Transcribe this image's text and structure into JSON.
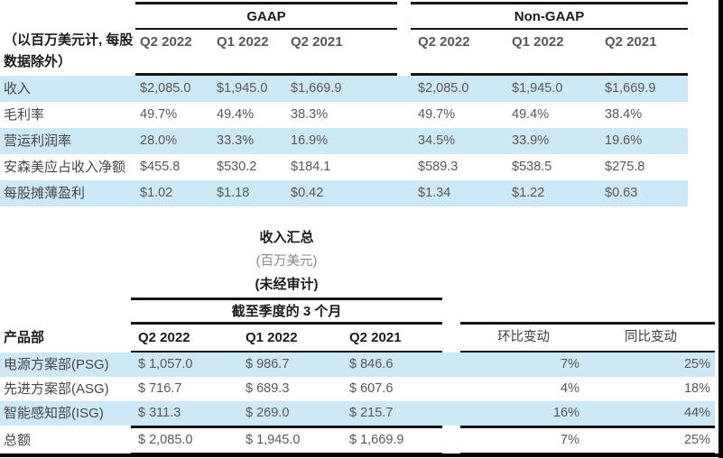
{
  "colors": {
    "highlight_blue": "#cde8f7",
    "rule_black": "#141414",
    "value_gray": "#585858"
  },
  "top_table": {
    "note_line1": "（以百万美元计, 每股",
    "note_line2": "数据除外）",
    "group_gaap": "GAAP",
    "group_non_gaap": "Non-GAAP",
    "columns": [
      "Q2 2022",
      "Q1 2022",
      "Q2 2021"
    ],
    "rows": [
      {
        "label": "收入",
        "vals": [
          "$2,085.0",
          "$1,945.0",
          "$1,669.9",
          "$2,085.0",
          "$1,945.0",
          "$1,669.9"
        ]
      },
      {
        "label": "毛利率",
        "vals": [
          "49.7%",
          "49.4%",
          "38.3%",
          "49.7%",
          "49.4%",
          "38.4%"
        ]
      },
      {
        "label": "营运利润率",
        "vals": [
          "28.0%",
          "33.3%",
          "16.9%",
          "34.5%",
          "33.9%",
          "19.6%"
        ]
      },
      {
        "label": "安森美应占收入净额",
        "vals": [
          "$455.8",
          "$530.2",
          "$184.1",
          "$589.3",
          "$538.5",
          "$275.8"
        ]
      },
      {
        "label": "每股摊薄盈利",
        "vals": [
          "$1.02",
          "$1.18",
          "$0.42",
          "$1.34",
          "$1.22",
          "$0.63"
        ]
      }
    ]
  },
  "summary": {
    "title": "收入汇总",
    "unit_note": "(百万美元)",
    "audit_note": "(未经审计)",
    "period_header": "截至季度的 3 个月"
  },
  "bottom_table": {
    "label_header": "产品部",
    "columns": [
      "Q2 2022",
      "Q1 2022",
      "Q2 2021"
    ],
    "qoq_header": "环比变动",
    "yoy_header": "同比变动",
    "rows": [
      {
        "label": "电源方案部(PSG)",
        "vals": [
          "$ 1,057.0",
          "$ 986.7",
          "$ 846.6"
        ],
        "qoq": "7%",
        "yoy": "25%"
      },
      {
        "label": "先进方案部(ASG)",
        "vals": [
          "$ 716.7",
          "$ 689.3",
          "$ 607.6"
        ],
        "qoq": "4%",
        "yoy": "18%"
      },
      {
        "label": "智能感知部(ISG)",
        "vals": [
          "$ 311.3",
          "$ 269.0",
          "$ 215.7"
        ],
        "qoq": "16%",
        "yoy": "44%"
      },
      {
        "label": "总额",
        "vals": [
          "$ 2,085.0",
          "$ 1,945.0",
          "$ 1,669.9"
        ],
        "qoq": "7%",
        "yoy": "25%"
      }
    ]
  }
}
